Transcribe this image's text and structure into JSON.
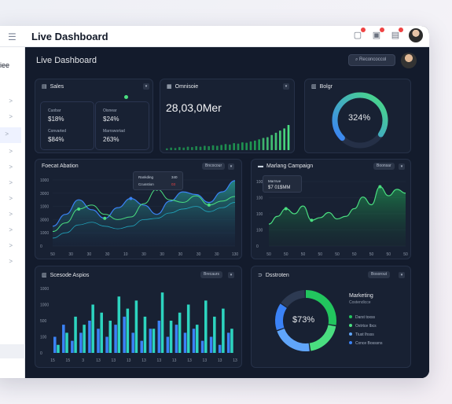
{
  "app": {
    "title": "Live Dashboard"
  },
  "sidebar": {
    "name": "adiee",
    "items": [
      ">",
      ">",
      ">",
      ">",
      ">",
      ">",
      ">",
      ">",
      ">",
      ">",
      ">"
    ]
  },
  "main": {
    "title": "Live Dashboard",
    "search_label": "Reconcoccol"
  },
  "sales": {
    "title": "Sales",
    "box1": {
      "label1": "Cuobar",
      "value1": "$18%",
      "label2": "Convarted",
      "value2": "$84%"
    },
    "box2": {
      "label1": "Oisnear",
      "value1": "$24%",
      "label2": "Marrswortad",
      "value2": "263%"
    }
  },
  "omnisce": {
    "title": "Omnisoie",
    "value": "28,03,0Mer",
    "bars": [
      4,
      6,
      5,
      7,
      6,
      8,
      7,
      9,
      8,
      10,
      9,
      11,
      10,
      12,
      14,
      13,
      16,
      15,
      18,
      17,
      20,
      22,
      25,
      28,
      30,
      35,
      40,
      45,
      50,
      58
    ]
  },
  "bolgr": {
    "title": "Bolgr",
    "value": "324%",
    "fraction": 0.72
  },
  "forecast": {
    "title": "Foecat Abation",
    "dropdown": "Bncocour",
    "tooltip": {
      "r1": "Rankding",
      "r1v": "340",
      "r2": "Ccusstion",
      "r2v": "03"
    },
    "ylabels": [
      "1000",
      "3000",
      "1000",
      "3000",
      "1000",
      "0"
    ],
    "xlabels": [
      "50",
      "30",
      "30",
      "30",
      "10",
      "30",
      "30",
      "30",
      "30",
      "30",
      "130"
    ],
    "series_a": [
      30,
      48,
      70,
      55,
      42,
      58,
      72,
      62,
      48,
      68,
      82,
      78,
      66,
      82,
      99
    ],
    "series_b": [
      22,
      35,
      56,
      62,
      48,
      40,
      44,
      64,
      86,
      70,
      66,
      76,
      62,
      68,
      75
    ],
    "series_c": [
      12,
      20,
      32,
      36,
      30,
      26,
      30,
      40,
      42,
      50,
      56,
      60,
      52,
      58,
      66
    ]
  },
  "marketing": {
    "title": "Marlang Campaign",
    "dropdown": "Boonsar",
    "tooltip": {
      "label": "Marrsve",
      "value": "$7 01$MM"
    },
    "ylabels": [
      "100",
      "100",
      "100",
      "100",
      "0"
    ],
    "xlabels": [
      "50",
      "50",
      "50",
      "50",
      "50",
      "50",
      "50",
      "50",
      "50"
    ],
    "series": [
      34,
      46,
      58,
      50,
      62,
      40,
      44,
      52,
      42,
      46,
      58,
      76,
      64,
      92,
      78,
      88,
      82
    ]
  },
  "sources": {
    "title": "Scesode Aspios",
    "dropdown": "Brecaurs",
    "ylabels": [
      "1000",
      "1000",
      "500",
      "100",
      "0"
    ],
    "xlabels": [
      "15",
      "15",
      "3",
      "13",
      "13",
      "13",
      "13",
      "13",
      "13",
      "13",
      "13",
      "13",
      "13"
    ],
    "bars_blue": [
      4,
      7,
      3,
      5,
      8,
      6,
      4,
      7,
      9,
      5,
      3,
      6,
      8,
      4,
      7,
      5,
      6,
      3,
      4,
      2,
      5
    ],
    "bars_teal": [
      2,
      5,
      9,
      7,
      12,
      10,
      8,
      14,
      11,
      13,
      9,
      6,
      15,
      8,
      10,
      12,
      7,
      13,
      9,
      11,
      6
    ]
  },
  "donut2": {
    "title": "Dsstroten",
    "dropdown": "Bosorout",
    "value": "$73%",
    "subtitle": "Marketing",
    "subtitle2": "Costendicce",
    "legend": [
      {
        "label": "Darst toxss",
        "color": "#22c55e"
      },
      {
        "label": "Oxtrtce Ibcs",
        "color": "#4ade80"
      },
      {
        "label": "Tiust Ihsss",
        "color": "#60a5fa"
      },
      {
        "label": "Cxnce Bosssns",
        "color": "#3b82f6"
      }
    ]
  }
}
